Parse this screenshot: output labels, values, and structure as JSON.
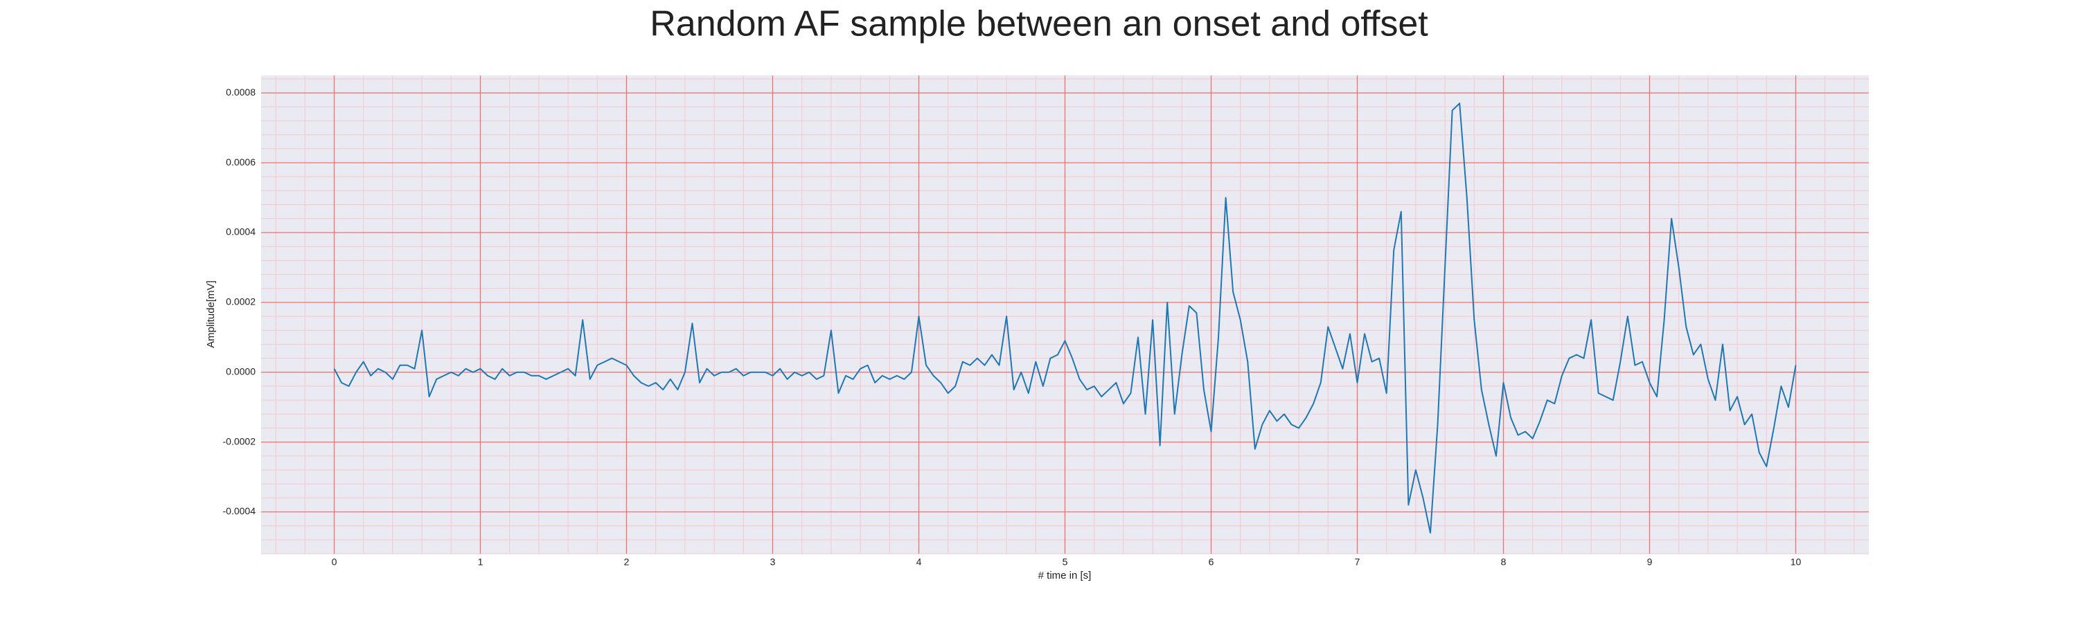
{
  "chart_data": {
    "type": "line",
    "title": "Random AF sample between an onset and offset",
    "x_label": "# time in [s]",
    "y_label": "Amplitude[mV]",
    "x": [
      0,
      0.05,
      0.1,
      0.15,
      0.2,
      0.25,
      0.3,
      0.35,
      0.4,
      0.45,
      0.5,
      0.55,
      0.6,
      0.65,
      0.7,
      0.75,
      0.8,
      0.85,
      0.9,
      0.95,
      1,
      1.05,
      1.1,
      1.15,
      1.2,
      1.25,
      1.3,
      1.35,
      1.4,
      1.45,
      1.5,
      1.55,
      1.6,
      1.65,
      1.7,
      1.75,
      1.8,
      1.85,
      1.9,
      1.95,
      2,
      2.05,
      2.1,
      2.15,
      2.2,
      2.25,
      2.3,
      2.35,
      2.4,
      2.45,
      2.5,
      2.55,
      2.6,
      2.65,
      2.7,
      2.75,
      2.8,
      2.85,
      2.9,
      2.95,
      3,
      3.05,
      3.1,
      3.15,
      3.2,
      3.25,
      3.3,
      3.35,
      3.4,
      3.45,
      3.5,
      3.55,
      3.6,
      3.65,
      3.7,
      3.75,
      3.8,
      3.85,
      3.9,
      3.95,
      4,
      4.05,
      4.1,
      4.15,
      4.2,
      4.25,
      4.3,
      4.35,
      4.4,
      4.45,
      4.5,
      4.55,
      4.6,
      4.65,
      4.7,
      4.75,
      4.8,
      4.85,
      4.9,
      4.95,
      5,
      5.05,
      5.1,
      5.15,
      5.2,
      5.25,
      5.3,
      5.35,
      5.4,
      5.45,
      5.5,
      5.55,
      5.6,
      5.65,
      5.7,
      5.75,
      5.8,
      5.85,
      5.9,
      5.95,
      6,
      6.05,
      6.1,
      6.15,
      6.2,
      6.25,
      6.3,
      6.35,
      6.4,
      6.45,
      6.5,
      6.55,
      6.6,
      6.65,
      6.7,
      6.75,
      6.8,
      6.85,
      6.9,
      6.95,
      7,
      7.05,
      7.1,
      7.15,
      7.2,
      7.25,
      7.3,
      7.35,
      7.4,
      7.45,
      7.5,
      7.55,
      7.6,
      7.65,
      7.7,
      7.75,
      7.8,
      7.85,
      7.9,
      7.95,
      8,
      8.05,
      8.1,
      8.15,
      8.2,
      8.25,
      8.3,
      8.35,
      8.4,
      8.45,
      8.5,
      8.55,
      8.6,
      8.65,
      8.7,
      8.75,
      8.8,
      8.85,
      8.9,
      8.95,
      9,
      9.05,
      9.1,
      9.15,
      9.2,
      9.25,
      9.3,
      9.35,
      9.4,
      9.45,
      9.5,
      9.55,
      9.6,
      9.65,
      9.7,
      9.75,
      9.8,
      9.85,
      9.9,
      9.95,
      10
    ],
    "series": [
      {
        "color": "#1f77b4",
        "values": [
          1e-05,
          -3e-05,
          -4e-05,
          0,
          3e-05,
          -1e-05,
          1e-05,
          0,
          -2e-05,
          2e-05,
          2e-05,
          1e-05,
          0.00012,
          -7e-05,
          -2e-05,
          -1e-05,
          0,
          -1e-05,
          1e-05,
          0,
          1e-05,
          -1e-05,
          -2e-05,
          1e-05,
          -1e-05,
          0,
          0,
          -1e-05,
          -1e-05,
          -2e-05,
          -1e-05,
          0,
          1e-05,
          -1e-05,
          0.00015,
          -2e-05,
          2e-05,
          3e-05,
          4e-05,
          3e-05,
          2e-05,
          -1e-05,
          -3e-05,
          -4e-05,
          -3e-05,
          -5e-05,
          -2e-05,
          -5e-05,
          0,
          0.00014,
          -3e-05,
          1e-05,
          -1e-05,
          0,
          0,
          1e-05,
          -1e-05,
          0,
          0,
          0,
          -1e-05,
          1e-05,
          -2e-05,
          0,
          -1e-05,
          0,
          -2e-05,
          -1e-05,
          0.00012,
          -6e-05,
          -1e-05,
          -2e-05,
          1e-05,
          2e-05,
          -3e-05,
          -1e-05,
          -2e-05,
          -1e-05,
          -2e-05,
          0,
          0.00016,
          2e-05,
          -1e-05,
          -3e-05,
          -6e-05,
          -4e-05,
          3e-05,
          2e-05,
          4e-05,
          2e-05,
          5e-05,
          2e-05,
          0.00016,
          -5e-05,
          0,
          -6e-05,
          3e-05,
          -4e-05,
          4e-05,
          5e-05,
          9e-05,
          4e-05,
          -2e-05,
          -5e-05,
          -4e-05,
          -7e-05,
          -5e-05,
          -3e-05,
          -9e-05,
          -6e-05,
          0.0001,
          -0.00012,
          0.00015,
          -0.00021,
          0.0002,
          -0.00012,
          5e-05,
          0.00019,
          0.00017,
          -5e-05,
          -0.00017,
          0.0001,
          0.0005,
          0.00023,
          0.00015,
          3e-05,
          -0.00022,
          -0.00015,
          -0.00011,
          -0.00014,
          -0.00012,
          -0.00015,
          -0.00016,
          -0.00013,
          -9e-05,
          -3e-05,
          0.00013,
          7e-05,
          1e-05,
          0.00011,
          -3e-05,
          0.00011,
          3e-05,
          4e-05,
          -6e-05,
          0.00035,
          0.00046,
          -0.00038,
          -0.00028,
          -0.00036,
          -0.00046,
          -0.00015,
          0.0003,
          0.00075,
          0.00077,
          0.0005,
          0.00015,
          -5e-05,
          -0.00015,
          -0.00024,
          -3e-05,
          -0.00013,
          -0.00018,
          -0.00017,
          -0.00019,
          -0.00014,
          -8e-05,
          -9e-05,
          -1e-05,
          4e-05,
          5e-05,
          4e-05,
          0.00015,
          -6e-05,
          -7e-05,
          -8e-05,
          3e-05,
          0.00016,
          2e-05,
          3e-05,
          -3e-05,
          -7e-05,
          0.00015,
          0.00044,
          0.0003,
          0.00013,
          5e-05,
          8e-05,
          -2e-05,
          -8e-05,
          8e-05,
          -0.00011,
          -7e-05,
          -0.00015,
          -0.00012,
          -0.00023,
          -0.00027,
          -0.00016,
          -4e-05,
          -0.0001,
          2e-05
        ]
      }
    ],
    "xlim": [
      -0.5,
      10.5
    ],
    "xticks": [
      0,
      1,
      2,
      3,
      4,
      5,
      6,
      7,
      8,
      9,
      10
    ],
    "ylim": [
      -0.00052,
      0.00085
    ],
    "yticks": [
      -0.0004,
      -0.0002,
      {
        "value": 0,
        "label": "0.0000"
      },
      0.0002,
      0.0004,
      0.0006,
      0.0008
    ],
    "grid": true,
    "minor_grid": true
  }
}
